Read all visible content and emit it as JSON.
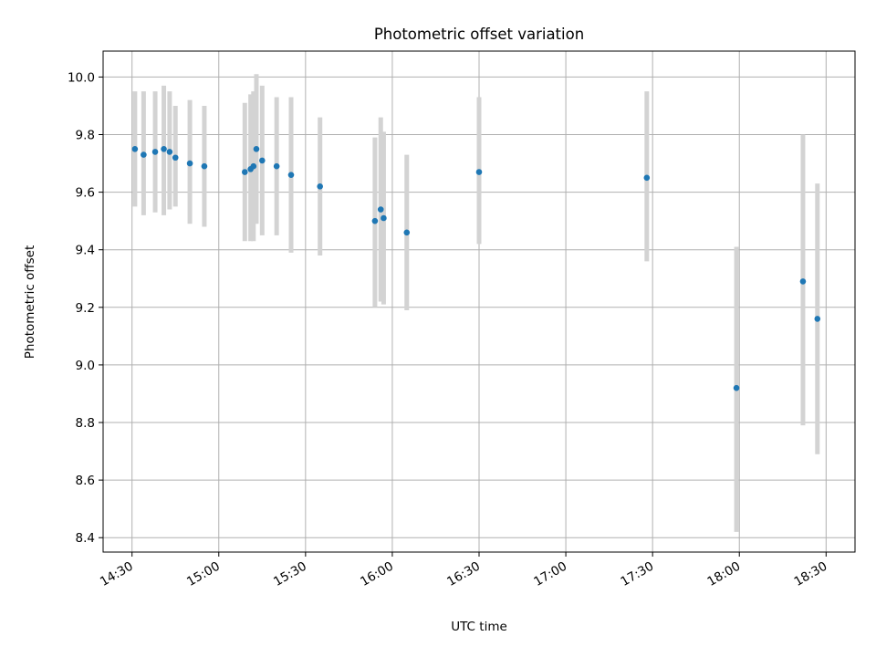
{
  "chart_data": {
    "type": "scatter",
    "title": "Photometric offset variation",
    "xlabel": "UTC time",
    "ylabel": "Photometric offset",
    "x_axis_type": "time",
    "xlim": [
      "14:20",
      "18:40"
    ],
    "ylim": [
      8.35,
      10.09
    ],
    "xticks": [
      "14:30",
      "15:00",
      "15:30",
      "16:00",
      "16:30",
      "17:00",
      "17:30",
      "18:00",
      "18:30"
    ],
    "yticks": [
      8.4,
      8.6,
      8.8,
      9.0,
      9.2,
      9.4,
      9.6,
      9.8,
      10.0
    ],
    "grid": true,
    "legend": false,
    "marker_color": "#1f77b4",
    "errorbar_color": "#d3d3d3",
    "series": [
      {
        "points": [
          {
            "x": "14:31",
            "y": 9.75,
            "yerr_low": 9.55,
            "yerr_high": 9.95
          },
          {
            "x": "14:34",
            "y": 9.73,
            "yerr_low": 9.52,
            "yerr_high": 9.95
          },
          {
            "x": "14:38",
            "y": 9.74,
            "yerr_low": 9.53,
            "yerr_high": 9.95
          },
          {
            "x": "14:41",
            "y": 9.75,
            "yerr_low": 9.52,
            "yerr_high": 9.97
          },
          {
            "x": "14:43",
            "y": 9.74,
            "yerr_low": 9.54,
            "yerr_high": 9.95
          },
          {
            "x": "14:45",
            "y": 9.72,
            "yerr_low": 9.55,
            "yerr_high": 9.9
          },
          {
            "x": "14:50",
            "y": 9.7,
            "yerr_low": 9.49,
            "yerr_high": 9.92
          },
          {
            "x": "14:55",
            "y": 9.69,
            "yerr_low": 9.48,
            "yerr_high": 9.9
          },
          {
            "x": "15:09",
            "y": 9.67,
            "yerr_low": 9.43,
            "yerr_high": 9.91
          },
          {
            "x": "15:11",
            "y": 9.68,
            "yerr_low": 9.43,
            "yerr_high": 9.94
          },
          {
            "x": "15:12",
            "y": 9.69,
            "yerr_low": 9.43,
            "yerr_high": 9.95
          },
          {
            "x": "15:13",
            "y": 9.75,
            "yerr_low": 9.49,
            "yerr_high": 10.01
          },
          {
            "x": "15:15",
            "y": 9.71,
            "yerr_low": 9.45,
            "yerr_high": 9.97
          },
          {
            "x": "15:20",
            "y": 9.69,
            "yerr_low": 9.45,
            "yerr_high": 9.93
          },
          {
            "x": "15:25",
            "y": 9.66,
            "yerr_low": 9.39,
            "yerr_high": 9.93
          },
          {
            "x": "15:35",
            "y": 9.62,
            "yerr_low": 9.38,
            "yerr_high": 9.86
          },
          {
            "x": "15:54",
            "y": 9.5,
            "yerr_low": 9.2,
            "yerr_high": 9.79
          },
          {
            "x": "15:56",
            "y": 9.54,
            "yerr_low": 9.22,
            "yerr_high": 9.86
          },
          {
            "x": "15:57",
            "y": 9.51,
            "yerr_low": 9.21,
            "yerr_high": 9.81
          },
          {
            "x": "16:05",
            "y": 9.46,
            "yerr_low": 9.19,
            "yerr_high": 9.73
          },
          {
            "x": "16:30",
            "y": 9.67,
            "yerr_low": 9.42,
            "yerr_high": 9.93
          },
          {
            "x": "17:28",
            "y": 9.65,
            "yerr_low": 9.36,
            "yerr_high": 9.95
          },
          {
            "x": "17:59",
            "y": 8.92,
            "yerr_low": 8.42,
            "yerr_high": 9.41
          },
          {
            "x": "18:22",
            "y": 9.29,
            "yerr_low": 8.79,
            "yerr_high": 9.8
          },
          {
            "x": "18:27",
            "y": 9.16,
            "yerr_low": 8.69,
            "yerr_high": 9.63
          }
        ]
      }
    ]
  }
}
